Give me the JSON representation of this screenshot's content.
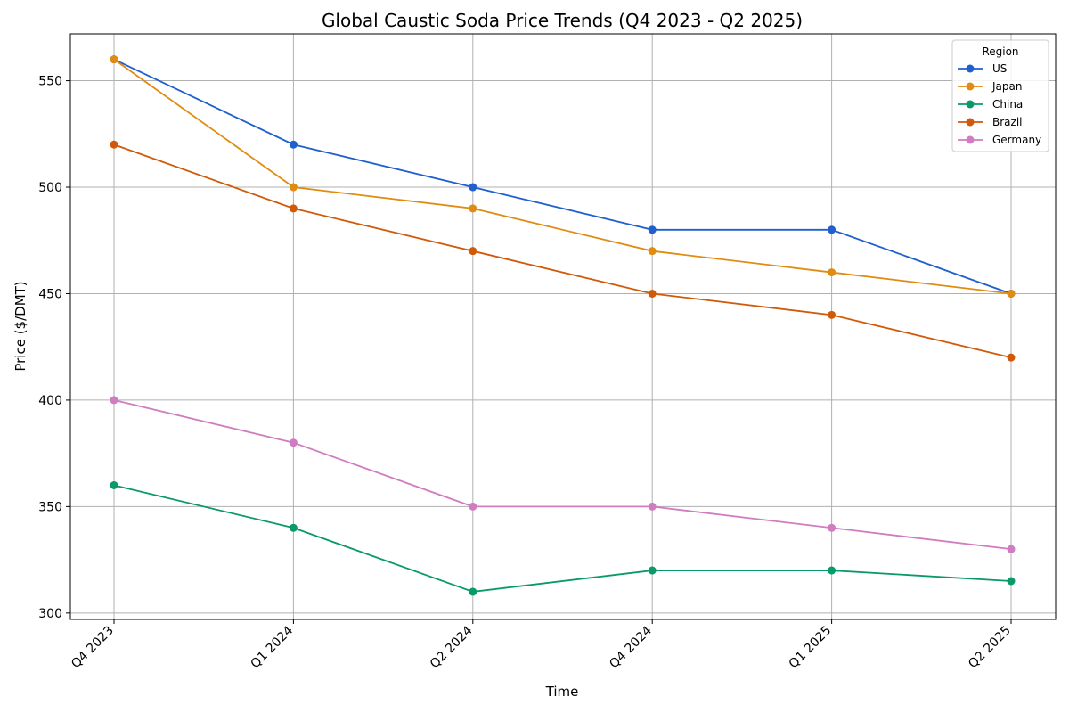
{
  "chart_data": {
    "type": "line",
    "title": "Global Caustic Soda Price Trends (Q4 2023 - Q2 2025)",
    "xlabel": "Time",
    "ylabel": "Price ($/DMT)",
    "categories": [
      "Q4 2023",
      "Q1 2024",
      "Q2 2024",
      "Q4 2024",
      "Q1 2025",
      "Q2 2025"
    ],
    "ylim": [
      297,
      572
    ],
    "yticks": [
      300,
      350,
      400,
      450,
      500,
      550
    ],
    "grid": true,
    "legend": {
      "title": "Region",
      "placement": "top-right"
    },
    "series": [
      {
        "name": "US",
        "color": "#1f5fd0",
        "values": [
          560,
          520,
          500,
          480,
          480,
          450
        ]
      },
      {
        "name": "Japan",
        "color": "#e08c12",
        "values": [
          560,
          500,
          490,
          470,
          460,
          450
        ]
      },
      {
        "name": "China",
        "color": "#0a9a6a",
        "values": [
          360,
          340,
          310,
          320,
          320,
          315
        ]
      },
      {
        "name": "Brazil",
        "color": "#d05a0a",
        "values": [
          520,
          490,
          470,
          450,
          440,
          420
        ]
      },
      {
        "name": "Germany",
        "color": "#d07cc0",
        "values": [
          400,
          380,
          350,
          350,
          340,
          330
        ]
      }
    ]
  }
}
